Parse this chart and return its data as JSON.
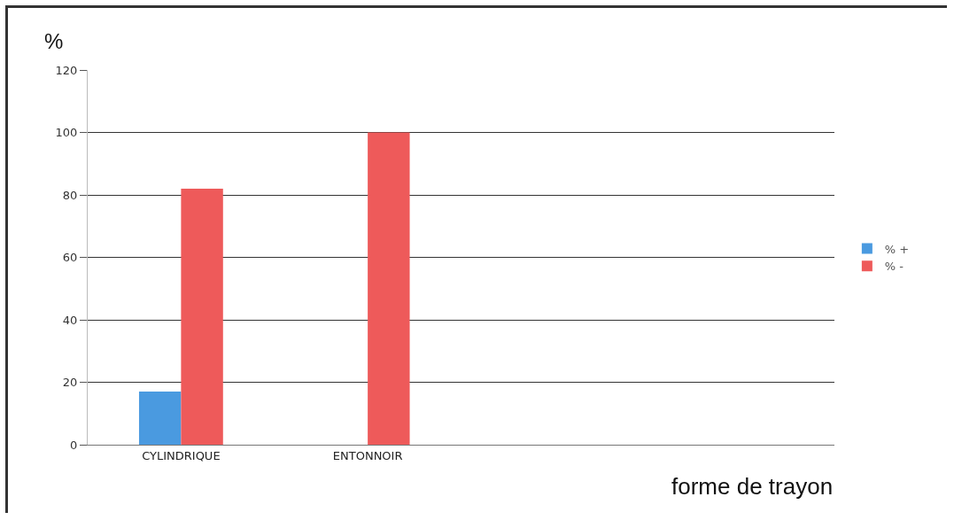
{
  "chart_data": {
    "type": "bar",
    "ylabel": "%",
    "xlabel": "forme de trayon",
    "categories": [
      "CYLINDRIQUE",
      "ENTONNOIR",
      null,
      null
    ],
    "series": [
      {
        "name": "% +",
        "color": "#4a9ae0",
        "values": [
          17,
          0,
          null,
          null
        ]
      },
      {
        "name": "% -",
        "color": "#ee5a5a",
        "values": [
          82,
          100,
          null,
          null
        ]
      }
    ],
    "ylim": [
      0,
      120
    ],
    "yticks": [
      0,
      20,
      40,
      60,
      80,
      100,
      120
    ],
    "grid": "y",
    "legend": "right"
  }
}
